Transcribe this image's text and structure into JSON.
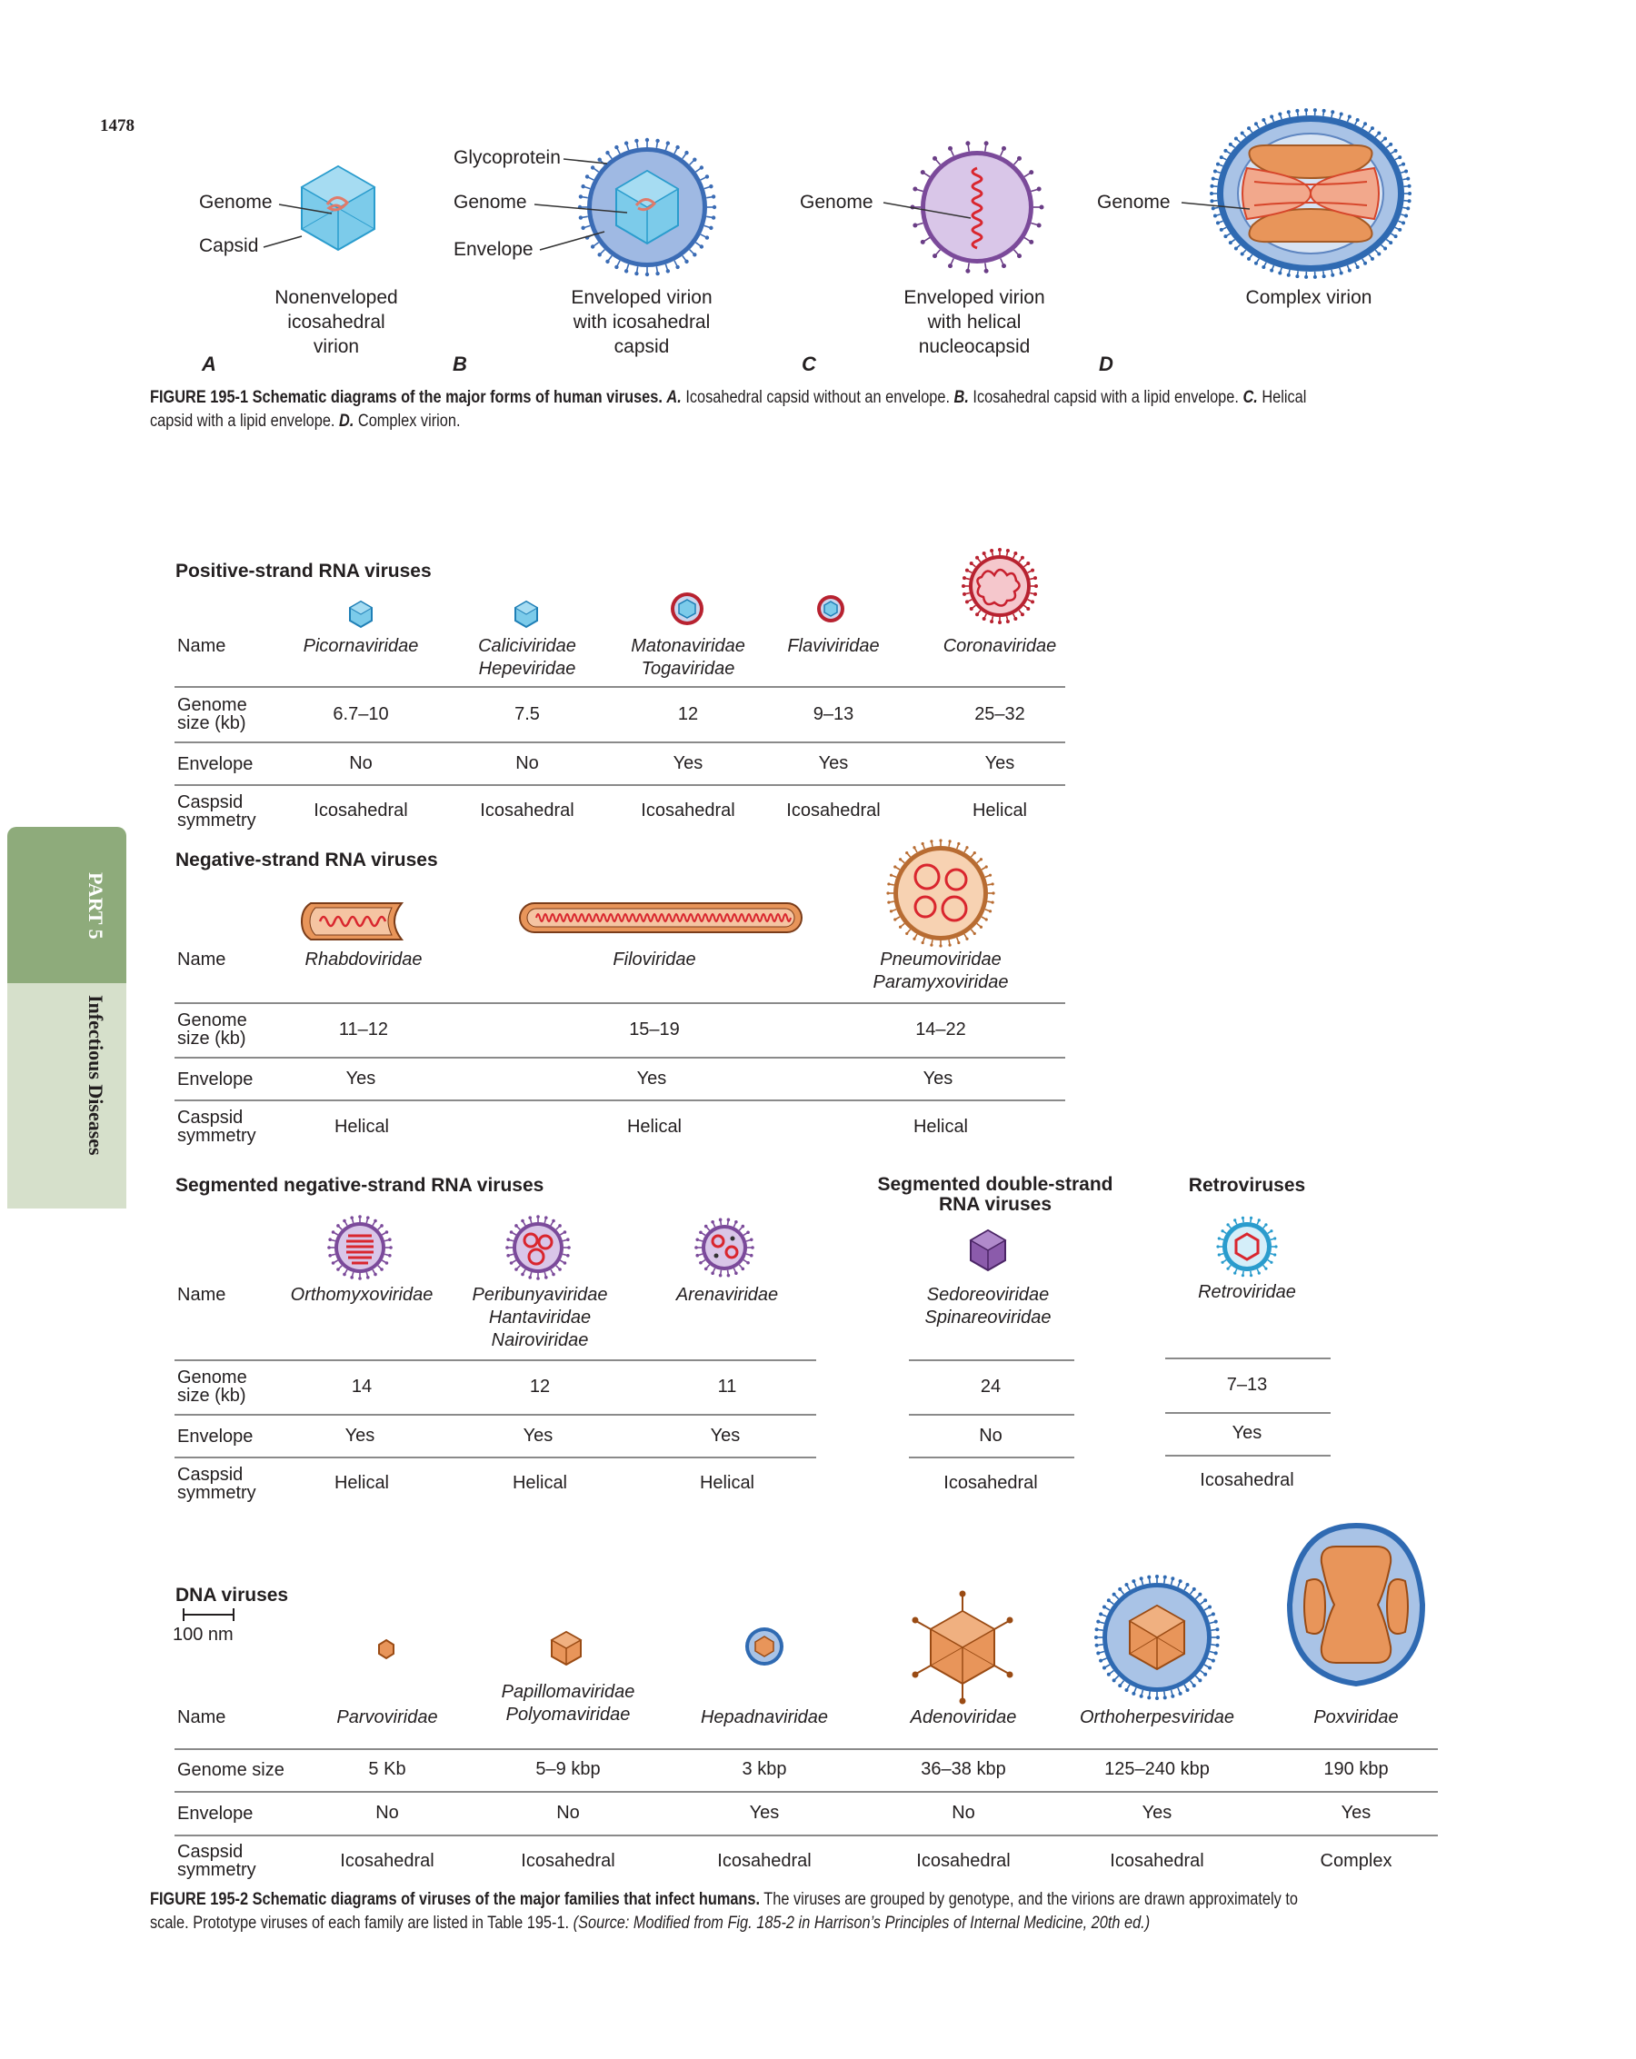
{
  "page_number": "1478",
  "side_tab": {
    "part": "PART 5",
    "section": "Infectious Diseases"
  },
  "fig1": {
    "labels": {
      "genome": "Genome",
      "capsid": "Capsid",
      "glycoprotein": "Glycoprotein",
      "envelope": "Envelope"
    },
    "panels": [
      {
        "letter": "A",
        "caption": [
          "Nonenveloped",
          "icosahedral",
          "virion"
        ]
      },
      {
        "letter": "B",
        "caption": [
          "Enveloped virion",
          "with icosahedral",
          "capsid"
        ]
      },
      {
        "letter": "C",
        "caption": [
          "Enveloped virion",
          "with helical",
          "nucleocapsid"
        ]
      },
      {
        "letter": "D",
        "caption": [
          "Complex virion"
        ]
      }
    ],
    "caption_bold": "FIGURE 195-1  Schematic diagrams of the major forms of human viruses.",
    "caption_rest_1": " Icosahedral capsid without an envelope. ",
    "caption_rest_2": " Icosahedral capsid with a lipid envelope. ",
    "caption_rest_3": " Helical",
    "caption_line2a": "capsid with a lipid envelope. ",
    "caption_line2b": " Complex virion.",
    "caption_letters": [
      "A.",
      "B.",
      "C.",
      "D."
    ]
  },
  "row_labels": {
    "name": "Name",
    "genome_kb": [
      "Genome",
      "size (kb)"
    ],
    "envelope": "Envelope",
    "symmetry": [
      "Caspsid",
      "symmetry"
    ],
    "genome_size": "Genome size"
  },
  "positive": {
    "title": "Positive-strand RNA viruses",
    "names": [
      [
        "Picornaviridae"
      ],
      [
        "Caliciviridae",
        "Hepeviridae"
      ],
      [
        "Matonaviridae",
        "Togaviridae"
      ],
      [
        "Flaviviridae"
      ],
      [
        "Coronaviridae"
      ]
    ],
    "genome": [
      "6.7–10",
      "7.5",
      "12",
      "9–13",
      "25–32"
    ],
    "envelope": [
      "No",
      "No",
      "Yes",
      "Yes",
      "Yes"
    ],
    "symmetry": [
      "Icosahedral",
      "Icosahedral",
      "Icosahedral",
      "Icosahedral",
      "Helical"
    ]
  },
  "negative": {
    "title": "Negative-strand RNA viruses",
    "names": [
      [
        "Rhabdoviridae"
      ],
      [
        "Filoviridae"
      ],
      [
        "Pneumoviridae",
        "Paramyxoviridae"
      ]
    ],
    "genome": [
      "11–12",
      "15–19",
      "14–22"
    ],
    "envelope": [
      "Yes",
      "Yes",
      "Yes"
    ],
    "symmetry": [
      "Helical",
      "Helical",
      "Helical"
    ]
  },
  "segmented_neg": {
    "title": "Segmented negative-strand RNA viruses",
    "names": [
      [
        "Orthomyxoviridae"
      ],
      [
        "Peribunyaviridae",
        "Hantaviridae",
        "Nairoviridae"
      ],
      [
        "Arenaviridae"
      ]
    ],
    "genome": [
      "14",
      "12",
      "11"
    ],
    "envelope": [
      "Yes",
      "Yes",
      "Yes"
    ],
    "symmetry": [
      "Helical",
      "Helical",
      "Helical"
    ]
  },
  "segmented_ds": {
    "title": [
      "Segmented double-strand",
      "RNA viruses"
    ],
    "names": [
      "Sedoreoviridae",
      "Spinareoviridae"
    ],
    "genome": "24",
    "envelope": "No",
    "symmetry": "Icosahedral"
  },
  "retro": {
    "title": "Retroviruses",
    "name": "Retroviridae",
    "genome": "7–13",
    "envelope": "Yes",
    "symmetry": "Icosahedral"
  },
  "dna": {
    "title": "DNA viruses",
    "scale": "100 nm",
    "names": [
      [
        "Parvoviridae"
      ],
      [
        "Papillomaviridae",
        "Polyomaviridae"
      ],
      [
        "Hepadnaviridae"
      ],
      [
        "Adenoviridae"
      ],
      [
        "Orthoherpesviridae"
      ],
      [
        "Poxviridae"
      ]
    ],
    "genome": [
      "5 Kb",
      "5–9 kbp",
      "3 kbp",
      "36–38 kbp",
      "125–240 kbp",
      "190 kbp"
    ],
    "envelope": [
      "No",
      "No",
      "Yes",
      "No",
      "Yes",
      "Yes"
    ],
    "symmetry": [
      "Icosahedral",
      "Icosahedral",
      "Icosahedral",
      "Icosahedral",
      "Icosahedral",
      "Complex"
    ]
  },
  "fig2": {
    "caption_bold": "FIGURE 195-2  Schematic diagrams of viruses of the major families that infect humans.",
    "caption_rest": " The viruses are grouped by genotype, and the virions are drawn approximately to",
    "caption_line2": "scale. Prototype viruses of each family are listed in Table 195-1. ",
    "caption_source": "(Source: Modified from Fig. 185-2 in Harrison’s Principles of Internal Medicine, 20th ed.)"
  }
}
